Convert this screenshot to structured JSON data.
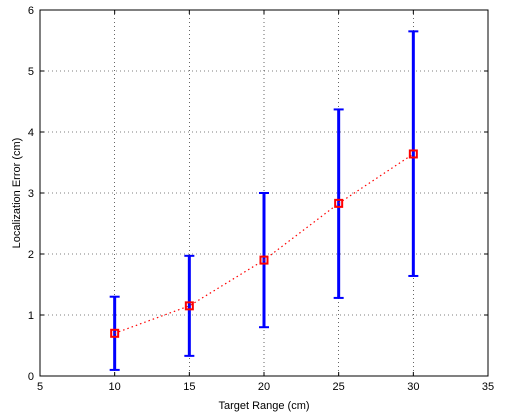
{
  "chart_data": {
    "type": "errorbar",
    "title": "",
    "xlabel": "Target Range (cm)",
    "ylabel": "Localization Error (cm)",
    "xlim": [
      5,
      35
    ],
    "ylim": [
      0,
      6
    ],
    "x_ticks": [
      "5",
      "10",
      "15",
      "20",
      "25",
      "30",
      "35"
    ],
    "y_ticks": [
      "0",
      "1",
      "2",
      "3",
      "4",
      "5",
      "6"
    ],
    "grid": true,
    "series": [
      {
        "x": [
          10,
          15,
          20,
          25,
          30
        ],
        "y": [
          0.7,
          1.15,
          1.9,
          2.83,
          3.64
        ],
        "lower": [
          0.1,
          0.33,
          0.8,
          1.28,
          1.64
        ],
        "upper": [
          1.3,
          1.97,
          3.0,
          4.37,
          5.65
        ],
        "line_color": "#ff0000",
        "marker_color": "#ff0000",
        "errorbar_color": "#0000ff",
        "line_style": "dotted",
        "marker": "square"
      }
    ]
  }
}
